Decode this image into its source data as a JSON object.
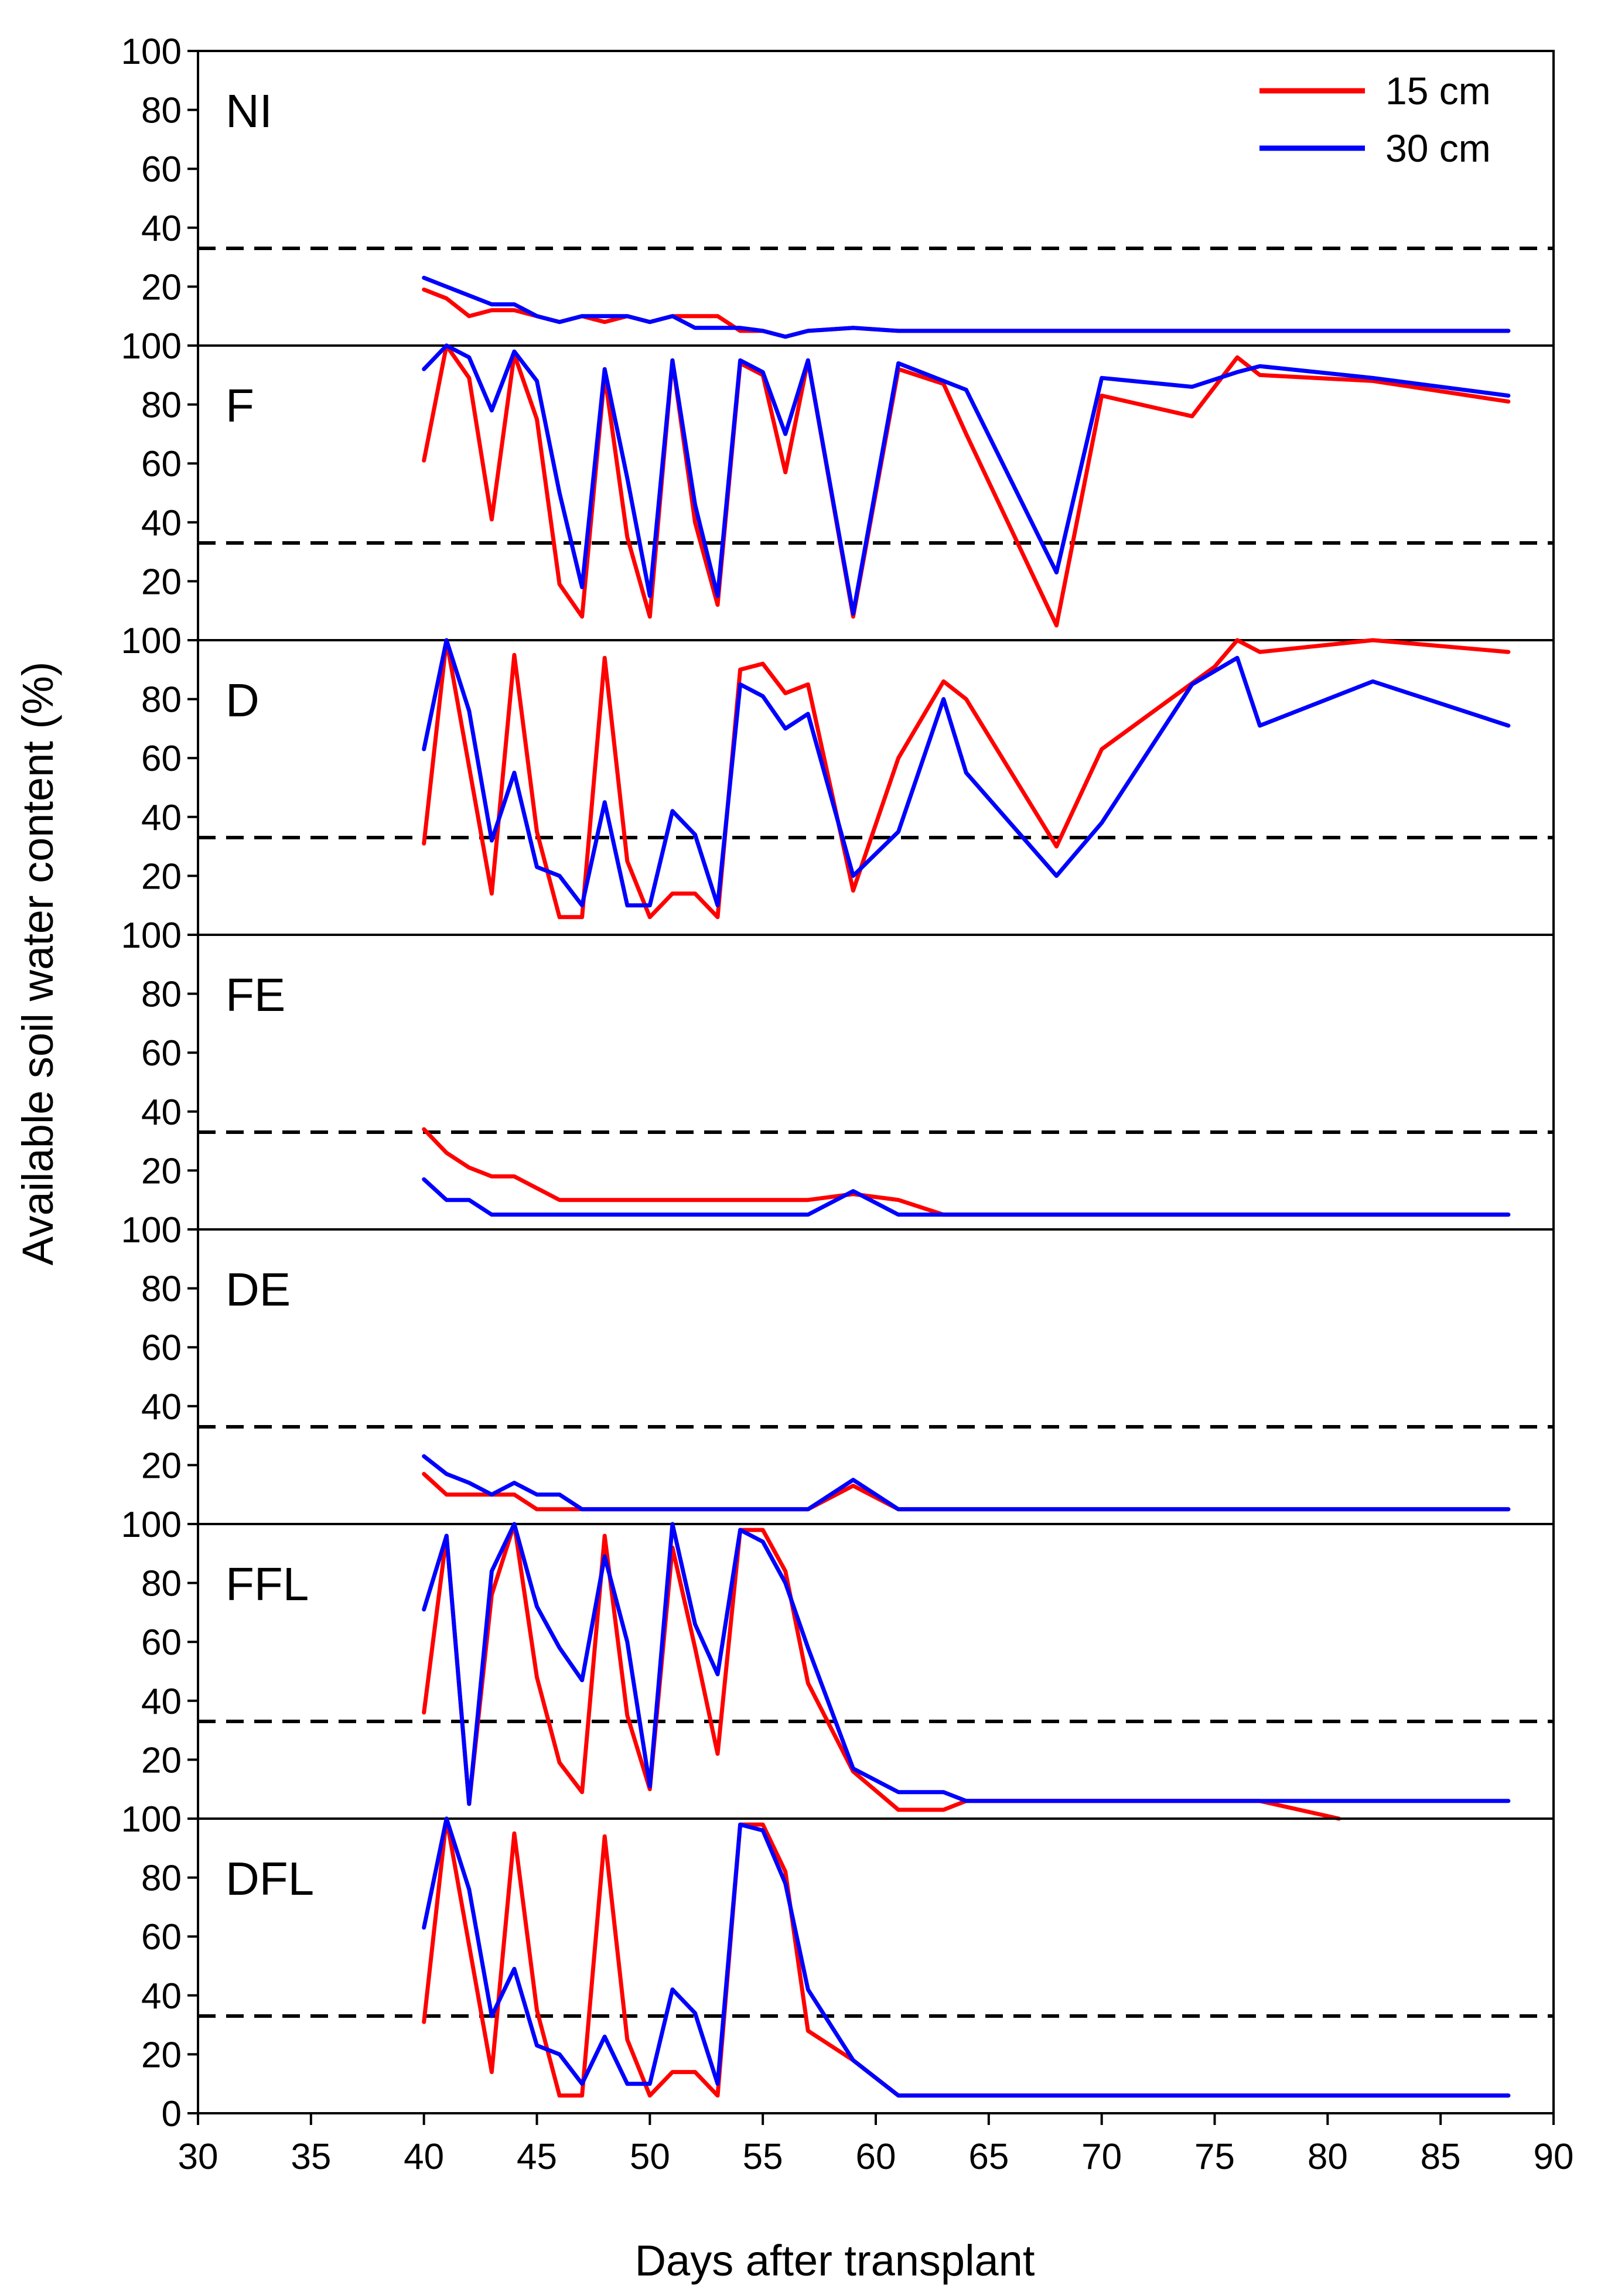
{
  "chart_data": {
    "type": "line",
    "xlabel": "Days after transplant",
    "ylabel": "Available soil water content (%)",
    "xlim": [
      30,
      90
    ],
    "ylim": [
      0,
      100
    ],
    "x_ticks": [
      "30",
      "35",
      "40",
      "45",
      "50",
      "55",
      "60",
      "65",
      "70",
      "75",
      "80",
      "85",
      "90"
    ],
    "y_ticks": [
      "0",
      "20",
      "40",
      "60",
      "80",
      "100"
    ],
    "threshold_line": 33,
    "legend": {
      "position": "top-right",
      "entries": [
        {
          "name": "15 cm",
          "color": "#ff0000"
        },
        {
          "name": "30 cm",
          "color": "#0000ff"
        }
      ]
    },
    "panels": [
      {
        "label": "NI",
        "series": [
          {
            "name": "15 cm",
            "color": "#ff0000",
            "x": [
              40,
              41,
              42,
              43,
              44,
              45,
              46,
              47,
              48,
              49,
              50,
              51,
              52,
              53,
              54,
              55,
              56,
              57,
              59,
              61,
              88
            ],
            "y": [
              19,
              16,
              10,
              12,
              12,
              10,
              8,
              10,
              8,
              10,
              8,
              10,
              10,
              10,
              5,
              5,
              3,
              5,
              6,
              5,
              5
            ]
          },
          {
            "name": "30 cm",
            "color": "#0000ff",
            "x": [
              40,
              41,
              42,
              43,
              44,
              45,
              46,
              47,
              48,
              49,
              50,
              51,
              52,
              53,
              54,
              55,
              56,
              57,
              59,
              61,
              88
            ],
            "y": [
              23,
              20,
              17,
              14,
              14,
              10,
              8,
              10,
              10,
              10,
              8,
              10,
              6,
              6,
              6,
              5,
              3,
              5,
              6,
              5,
              5
            ]
          }
        ]
      },
      {
        "label": "F",
        "series": [
          {
            "name": "15 cm",
            "color": "#ff0000",
            "x": [
              40,
              41,
              42,
              43,
              44,
              45,
              46,
              47,
              48,
              49,
              50,
              51,
              52,
              53,
              54,
              55,
              56,
              57,
              59,
              61,
              63,
              64,
              68,
              70,
              74,
              76,
              77,
              82,
              88
            ],
            "y": [
              61,
              100,
              89,
              41,
              97,
              75,
              19,
              8,
              90,
              35,
              8,
              95,
              40,
              12,
              94,
              90,
              57,
              95,
              8,
              92,
              87,
              70,
              5,
              83,
              76,
              96,
              90,
              88,
              81
            ]
          },
          {
            "name": "30 cm",
            "color": "#0000ff",
            "x": [
              40,
              41,
              42,
              43,
              44,
              45,
              46,
              47,
              48,
              49,
              50,
              51,
              52,
              53,
              54,
              55,
              56,
              57,
              59,
              61,
              64,
              68,
              70,
              74,
              76,
              77,
              82,
              88
            ],
            "y": [
              92,
              100,
              96,
              78,
              98,
              88,
              50,
              18,
              92,
              55,
              15,
              95,
              46,
              15,
              95,
              91,
              70,
              95,
              9,
              94,
              85,
              23,
              89,
              86,
              91,
              93,
              89,
              83
            ]
          }
        ]
      },
      {
        "label": "D",
        "series": [
          {
            "name": "15 cm",
            "color": "#ff0000",
            "x": [
              40,
              41,
              42,
              43,
              44,
              45,
              46,
              47,
              48,
              49,
              50,
              51,
              52,
              53,
              54,
              55,
              56,
              57,
              59,
              61,
              63,
              64,
              68,
              70,
              75,
              76,
              77,
              82,
              88
            ],
            "y": [
              31,
              100,
              57,
              14,
              95,
              35,
              6,
              6,
              94,
              25,
              6,
              14,
              14,
              6,
              90,
              92,
              82,
              85,
              15,
              60,
              86,
              80,
              30,
              63,
              91,
              100,
              96,
              100,
              96
            ]
          },
          {
            "name": "30 cm",
            "color": "#0000ff",
            "x": [
              40,
              41,
              42,
              43,
              44,
              45,
              46,
              47,
              48,
              49,
              50,
              51,
              52,
              53,
              54,
              55,
              56,
              57,
              59,
              61,
              63,
              64,
              68,
              70,
              74,
              76,
              77,
              82,
              88
            ],
            "y": [
              63,
              100,
              76,
              32,
              55,
              23,
              20,
              10,
              45,
              10,
              10,
              42,
              34,
              10,
              85,
              81,
              70,
              75,
              20,
              35,
              80,
              55,
              20,
              38,
              85,
              94,
              71,
              86,
              71
            ]
          }
        ]
      },
      {
        "label": "FE",
        "series": [
          {
            "name": "15 cm",
            "color": "#ff0000",
            "x": [
              40,
              41,
              42,
              43,
              44,
              45,
              46,
              57,
              59,
              61,
              63,
              88
            ],
            "y": [
              34,
              26,
              21,
              18,
              18,
              14,
              10,
              10,
              12,
              10,
              5,
              5
            ]
          },
          {
            "name": "30 cm",
            "color": "#0000ff",
            "x": [
              40,
              41,
              42,
              43,
              57,
              59,
              61,
              88
            ],
            "y": [
              17,
              10,
              10,
              5,
              5,
              13,
              5,
              5
            ]
          }
        ]
      },
      {
        "label": "DE",
        "series": [
          {
            "name": "15 cm",
            "color": "#ff0000",
            "x": [
              40,
              41,
              42,
              43,
              44,
              45,
              46,
              47,
              57,
              59,
              61,
              88
            ],
            "y": [
              17,
              10,
              10,
              10,
              10,
              5,
              5,
              5,
              5,
              13,
              5,
              5
            ]
          },
          {
            "name": "30 cm",
            "color": "#0000ff",
            "x": [
              40,
              41,
              42,
              43,
              44,
              45,
              46,
              47,
              57,
              59,
              61,
              88
            ],
            "y": [
              23,
              17,
              14,
              10,
              14,
              10,
              10,
              5,
              5,
              15,
              5,
              5
            ]
          }
        ]
      },
      {
        "label": "FFL",
        "series": [
          {
            "name": "15 cm",
            "color": "#ff0000",
            "x": [
              40,
              41,
              42,
              43,
              44,
              45,
              46,
              47,
              48,
              49,
              50,
              51,
              52,
              53,
              54,
              55,
              56,
              57,
              59,
              61,
              63,
              64,
              77,
              80.5
            ],
            "y": [
              36,
              96,
              5,
              76,
              100,
              48,
              19,
              9,
              96,
              35,
              10,
              92,
              58,
              22,
              98,
              98,
              84,
              46,
              16,
              3,
              3,
              6,
              6,
              0
            ]
          },
          {
            "name": "30 cm",
            "color": "#0000ff",
            "x": [
              40,
              41,
              42,
              43,
              44,
              45,
              46,
              47,
              48,
              49,
              50,
              51,
              52,
              53,
              54,
              55,
              56,
              57,
              59,
              61,
              63,
              64,
              88
            ],
            "y": [
              71,
              96,
              5,
              84,
              100,
              72,
              58,
              47,
              89,
              60,
              11,
              100,
              66,
              49,
              98,
              94,
              80,
              58,
              17,
              9,
              9,
              6,
              6
            ]
          }
        ]
      },
      {
        "label": "DFL",
        "series": [
          {
            "name": "15 cm",
            "color": "#ff0000",
            "x": [
              40,
              41,
              42,
              43,
              44,
              45,
              46,
              47,
              48,
              49,
              50,
              51,
              52,
              53,
              54,
              55,
              56,
              57,
              59,
              61,
              88
            ],
            "y": [
              31,
              100,
              57,
              14,
              95,
              35,
              6,
              6,
              94,
              25,
              6,
              14,
              14,
              6,
              98,
              98,
              82,
              28,
              18,
              6,
              6
            ]
          },
          {
            "name": "30 cm",
            "color": "#0000ff",
            "x": [
              40,
              41,
              42,
              43,
              44,
              45,
              46,
              47,
              48,
              49,
              50,
              51,
              52,
              53,
              54,
              55,
              56,
              57,
              59,
              61,
              88
            ],
            "y": [
              63,
              100,
              76,
              33,
              49,
              23,
              20,
              10,
              26,
              10,
              10,
              42,
              34,
              10,
              98,
              96,
              78,
              42,
              18,
              6,
              6
            ]
          }
        ]
      }
    ]
  }
}
